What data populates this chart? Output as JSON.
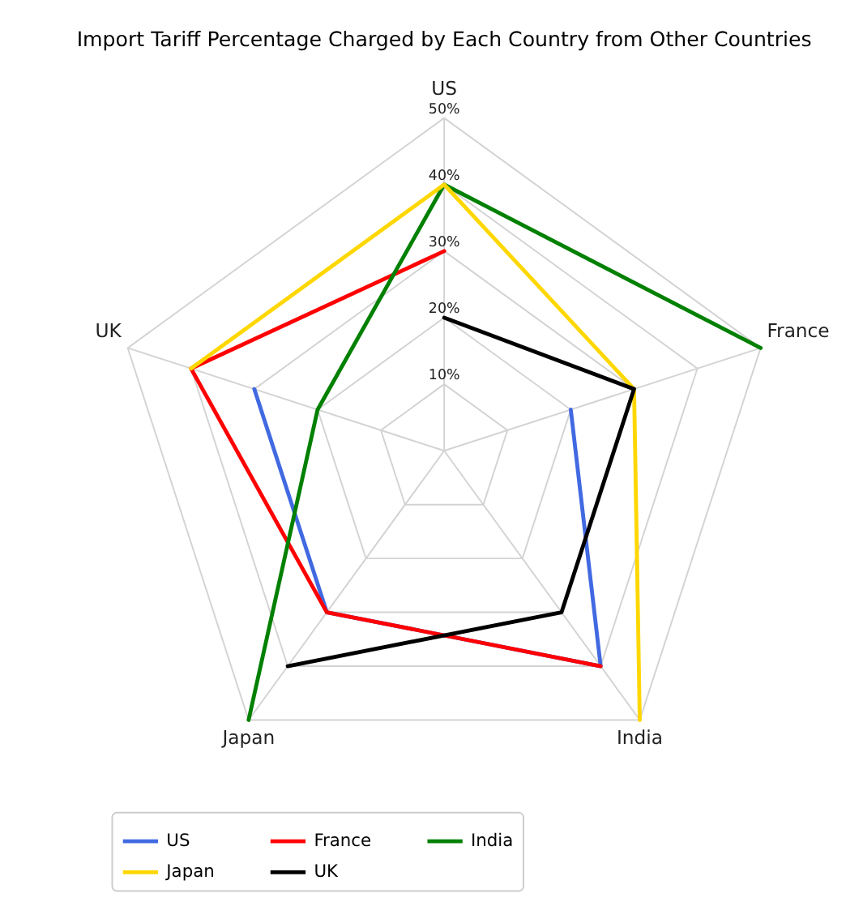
{
  "chart_data": {
    "type": "radar",
    "title": "Import Tariff Percentage Charged by Each Country from Other Countries",
    "categories": [
      "US",
      "France",
      "India",
      "Japan",
      "UK"
    ],
    "series": [
      {
        "name": "US",
        "color": "#4169e1",
        "values": [
          null,
          20,
          40,
          30,
          30
        ]
      },
      {
        "name": "France",
        "color": "#ff0000",
        "values": [
          30,
          null,
          40,
          30,
          40
        ]
      },
      {
        "name": "India",
        "color": "#008000",
        "values": [
          40,
          50,
          null,
          50,
          20
        ]
      },
      {
        "name": "Japan",
        "color": "#ffd700",
        "values": [
          40,
          30,
          50,
          null,
          40
        ]
      },
      {
        "name": "UK",
        "color": "#000000",
        "values": [
          20,
          30,
          30,
          40,
          null
        ]
      }
    ],
    "ylim": [
      0,
      50
    ],
    "yticks": [
      {
        "value": 10,
        "label": "10%"
      },
      {
        "value": 20,
        "label": "20%"
      },
      {
        "value": 30,
        "label": "30%"
      },
      {
        "value": 40,
        "label": "40%"
      },
      {
        "value": 50,
        "label": "50%"
      }
    ],
    "grid": true,
    "legend": "bottom"
  }
}
